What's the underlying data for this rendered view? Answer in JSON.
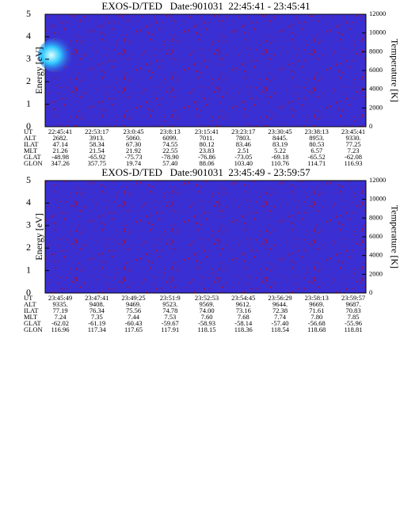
{
  "chart_data": [
    {
      "type": "heatmap",
      "title": "EXOS-D/TED   Date:901031  22:45:41 - 23:45:41",
      "ylabel": "Energy [eV]",
      "y2label": "Temperature [K]",
      "ylim": [
        0,
        5
      ],
      "yticks": [
        0,
        1,
        2,
        3,
        4,
        5
      ],
      "y2lim": [
        0,
        12000
      ],
      "y2ticks": [
        0,
        2000,
        4000,
        6000,
        8000,
        10000,
        12000
      ],
      "orbit_table": {
        "row_labels": [
          "UT",
          "ALT",
          "ILAT",
          "MLT",
          "GLAT",
          "GLON"
        ],
        "rows": [
          [
            "22:45:41",
            "22:53:17",
            "23:0:45",
            "23:8:13",
            "23:15:41",
            "23:23:17",
            "23:30:45",
            "23:38:13",
            "23:45:41"
          ],
          [
            "2682.",
            "3913.",
            "5060.",
            "6099.",
            "7011.",
            "7803.",
            "8445.",
            "8953.",
            "9330."
          ],
          [
            "47.14",
            "58.34",
            "67.30",
            "74.55",
            "80.12",
            "83.46",
            "83.19",
            "80.53",
            "77.25"
          ],
          [
            "21.26",
            "21.54",
            "21.92",
            "22.55",
            "23.83",
            "2.51",
            "5.22",
            "6.57",
            "7.23"
          ],
          [
            "-48.98",
            "-65.92",
            "-75.73",
            "-78.90",
            "-76.86",
            "-73.05",
            "-69.18",
            "-65.52",
            "-62.08"
          ],
          [
            "347.26",
            "357.75",
            "19.74",
            "57.40",
            "88.06",
            "103.40",
            "110.76",
            "114.71",
            "116.93"
          ]
        ]
      }
    },
    {
      "type": "heatmap",
      "title": "EXOS-D/TED   Date:901031  23:45:49 - 23:59:57",
      "ylabel": "Energy [eV]",
      "y2label": "Temperature [K]",
      "ylim": [
        0,
        5
      ],
      "yticks": [
        0,
        1,
        2,
        3,
        4,
        5
      ],
      "y2lim": [
        0,
        12000
      ],
      "y2ticks": [
        0,
        2000,
        4000,
        6000,
        8000,
        10000,
        12000
      ],
      "orbit_table": {
        "row_labels": [
          "UT",
          "ALT",
          "ILAT",
          "MLT",
          "GLAT",
          "GLON"
        ],
        "rows": [
          [
            "23:45:49",
            "23:47:41",
            "23:49:25",
            "23:51:9",
            "23:52:53",
            "23:54:45",
            "23:56:29",
            "23:58:13",
            "23:59:57"
          ],
          [
            "9335.",
            "9408.",
            "9469.",
            "9523.",
            "9569.",
            "9612.",
            "9644.",
            "9669.",
            "9687."
          ],
          [
            "77.19",
            "76.34",
            "75.56",
            "74.78",
            "74.00",
            "73.16",
            "72.38",
            "71.61",
            "70.83"
          ],
          [
            "7.24",
            "7.35",
            "7.44",
            "7.53",
            "7.60",
            "7.68",
            "7.74",
            "7.80",
            "7.85"
          ],
          [
            "-62.02",
            "-61.19",
            "-60.43",
            "-59.67",
            "-58.93",
            "-58.14",
            "-57.40",
            "-56.68",
            "-55.96"
          ],
          [
            "116.96",
            "117.34",
            "117.65",
            "117.91",
            "118.15",
            "118.36",
            "118.54",
            "118.68",
            "118.81"
          ]
        ]
      }
    }
  ]
}
